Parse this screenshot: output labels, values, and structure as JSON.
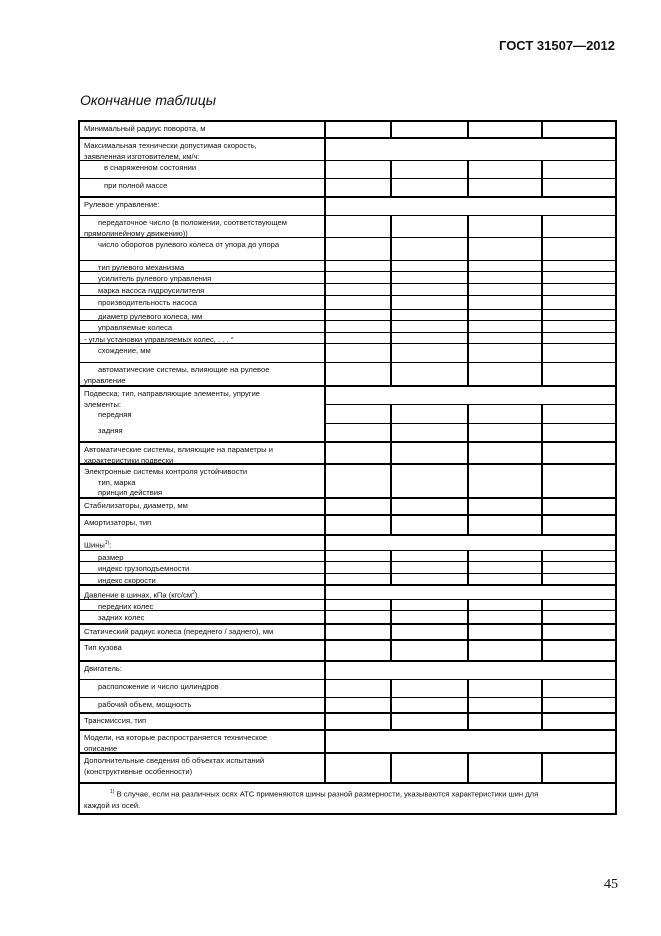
{
  "header": {
    "standard": "ГОСТ 31507—2012"
  },
  "caption": "Окончание таблицы",
  "page_number": "45",
  "table": {
    "rows": [
      {
        "lines": [
          {
            "t": "Минимальный радиус поворота, м"
          }
        ],
        "type": "cells",
        "section": true
      },
      {
        "lines": [
          {
            "t": "Максимальная технически допустимая скорость,"
          },
          {
            "t": "заявленная изготовителем, км/ч:"
          }
        ],
        "type": "merged",
        "section": true
      },
      {
        "lines": [
          {
            "t": "в снаряженном состоянии",
            "i": 2
          }
        ],
        "type": "cells"
      },
      {
        "lines": [
          {
            "t": "при полной массе",
            "i": 2
          }
        ],
        "type": "cells"
      },
      {
        "lines": [
          {
            "t": "Рулевое управление:"
          }
        ],
        "type": "merged",
        "section": true
      },
      {
        "lines": [
          {
            "t": "передаточное число (в положении, соответствующем",
            "i": 1
          },
          {
            "t": "прямолинейному движению))"
          }
        ],
        "type": "cells"
      },
      {
        "lines": [
          {
            "t": "число оборотов рулевого колеса от упора    до упора",
            "i": 1
          }
        ],
        "type": "cells"
      },
      {
        "lines": [
          {
            "t": "тип рулевого механизма",
            "i": 1
          }
        ],
        "type": "cells"
      },
      {
        "lines": [
          {
            "t": "усилитель рулевого управления",
            "i": 1
          }
        ],
        "type": "cells"
      },
      {
        "lines": [
          {
            "t": "марка насоса гидроусилителя",
            "i": 1
          }
        ],
        "type": "cells"
      },
      {
        "lines": [
          {
            "t": "производительность насоса",
            "i": 1
          }
        ],
        "type": "cells"
      },
      {
        "lines": [
          {
            "t": "диаметр рулевого колеса, мм",
            "i": 1
          }
        ],
        "type": "cells"
      },
      {
        "lines": [
          {
            "t": "управляемые колеса",
            "i": 1
          }
        ],
        "type": "cells"
      },
      {
        "lines": [
          {
            "t": "-     углы установки управляемых колес, . . . °"
          }
        ],
        "type": "cells"
      },
      {
        "lines": [
          {
            "t": "схождение, мм",
            "i": 1
          }
        ],
        "type": "cells"
      },
      {
        "lines": [
          {
            "t": "автоматические системы, влияющие на рулевое",
            "i": 1
          },
          {
            "t": "управление"
          }
        ],
        "type": "cells"
      },
      {
        "lines": [
          {
            "t": "Подвеска; тип, направляющие элементы, упругие"
          },
          {
            "t": "элементы:"
          },
          {
            "t": "передняя",
            "i": 1
          }
        ],
        "type": "merged",
        "section": true
      },
      {
        "lines": [],
        "type": "cells"
      },
      {
        "lines": [
          {
            "t": "задняя",
            "i": 1
          }
        ],
        "type": "cells"
      },
      {
        "lines": [
          {
            "t": "Автоматические системы, влияющие на параметры и"
          },
          {
            "t": "характеристики подвески"
          }
        ],
        "type": "cells",
        "section": true
      },
      {
        "lines": [
          {
            "t": "Электронные системы контроля устойчивости"
          },
          {
            "t": "тип, марка",
            "i": 1
          },
          {
            "t": "принцип действия",
            "i": 1
          }
        ],
        "type": "cells",
        "section": true
      },
      {
        "lines": [
          {
            "t": "Стабилизаторы, диаметр, мм"
          }
        ],
        "type": "cells",
        "section": true
      },
      {
        "lines": [
          {
            "t": "Амортизаторы, тип"
          }
        ],
        "type": "cells",
        "section": true
      },
      {
        "lines": [
          {
            "t": "Шины",
            "sup": "1)",
            "after": ":"
          }
        ],
        "type": "merged",
        "section": true
      },
      {
        "lines": [
          {
            "t": "размер",
            "i": 1
          }
        ],
        "type": "cells"
      },
      {
        "lines": [
          {
            "t": "индекс грузоподъемности",
            "i": 1
          }
        ],
        "type": "cells"
      },
      {
        "lines": [
          {
            "t": "индекс скорости",
            "i": 1
          }
        ],
        "type": "cells"
      },
      {
        "lines": [
          {
            "t": "Давление в шинах, кПа (кгс/см",
            "sup": "2",
            "after": ")."
          }
        ],
        "type": "merged",
        "section": true
      },
      {
        "lines": [
          {
            "t": "передних колес",
            "i": 1
          }
        ],
        "type": "cells"
      },
      {
        "lines": [
          {
            "t": "задних колес",
            "i": 1
          }
        ],
        "type": "cells"
      },
      {
        "lines": [
          {
            "t": "Статический радиус колеса (переднего / заднего), мм"
          }
        ],
        "type": "cells",
        "section": true
      },
      {
        "lines": [
          {
            "t": "Тип кузова"
          }
        ],
        "type": "cells",
        "section": true
      },
      {
        "lines": [
          {
            "t": "Двигатель:"
          }
        ],
        "type": "merged",
        "section": true
      },
      {
        "lines": [
          {
            "t": "расположение и число цилиндров",
            "i": 1
          }
        ],
        "type": "cells"
      },
      {
        "lines": [
          {
            "t": "рабочий объем, мощность",
            "i": 1
          }
        ],
        "type": "cells"
      },
      {
        "lines": [
          {
            "t": "Трансмиссия, тип"
          }
        ],
        "type": "cells",
        "section": true
      },
      {
        "lines": [
          {
            "t": "Модели, на которые распространяется техническое"
          },
          {
            "t": "описание"
          }
        ],
        "type": "merged",
        "section": true
      },
      {
        "lines": [
          {
            "t": "Дополнительные сведения об объектах испытаний"
          },
          {
            "t": "(конструктивные особенности)"
          }
        ],
        "type": "cells",
        "section": true
      }
    ],
    "footnote": {
      "mark": "1)",
      "text": " В случае, если на различных осях АТС применяются шины разной размерности, указываются характеристики шин для",
      "text2": "каждой из осей."
    }
  }
}
